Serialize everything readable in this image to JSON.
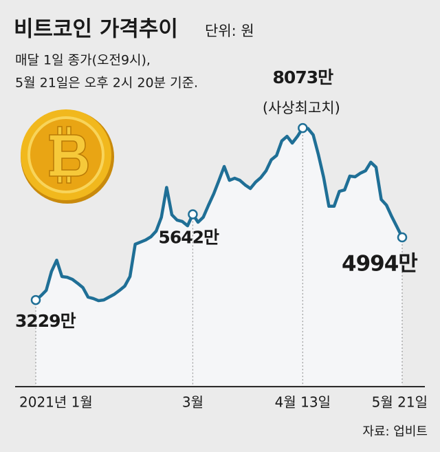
{
  "chart_data": {
    "type": "line",
    "title": "비트코인 가격추이",
    "unit": "단위: 원",
    "subtitle": [
      "매달 1일 종가(오전9시),",
      "5월 21일은 오후 2시 20분 기준."
    ],
    "source": "자료: 업비트",
    "peak_note": "(사상최고치)",
    "color": "#1f6f96",
    "ylim": [
      827,
      8967
    ],
    "categories": [
      "2021년 1월",
      null,
      null,
      null,
      null,
      null,
      null,
      null,
      null,
      null,
      null,
      null,
      null,
      null,
      null,
      null,
      null,
      null,
      null,
      null,
      null,
      null,
      null,
      null,
      null,
      null,
      null,
      null,
      null,
      null,
      "3월",
      null,
      null,
      null,
      null,
      null,
      null,
      null,
      null,
      null,
      null,
      null,
      null,
      null,
      null,
      null,
      null,
      null,
      null,
      null,
      null,
      "4월 13일",
      null,
      null,
      null,
      null,
      null,
      null,
      null,
      null,
      null,
      null,
      null,
      null,
      null,
      null,
      null,
      null,
      null,
      null,
      "5월 21일"
    ],
    "values": [
      3229,
      3350,
      3500,
      4030,
      4350,
      3890,
      3870,
      3810,
      3700,
      3580,
      3310,
      3270,
      3210,
      3230,
      3310,
      3390,
      3500,
      3620,
      3890,
      4800,
      4860,
      4920,
      5010,
      5170,
      5560,
      6400,
      5630,
      5480,
      5440,
      5320,
      5642,
      5420,
      5560,
      5900,
      6220,
      6600,
      6990,
      6600,
      6660,
      6600,
      6470,
      6370,
      6550,
      6680,
      6870,
      7180,
      7300,
      7710,
      7840,
      7650,
      7840,
      8073,
      8060,
      7880,
      7320,
      6680,
      5870,
      5870,
      6290,
      6330,
      6720,
      6700,
      6800,
      6870,
      7110,
      6970,
      6060,
      5900,
      5580,
      5290,
      4994
    ],
    "value_labels": [
      "3229만",
      null,
      null,
      null,
      null,
      null,
      null,
      null,
      null,
      null,
      null,
      null,
      null,
      null,
      null,
      null,
      null,
      null,
      null,
      null,
      null,
      null,
      null,
      null,
      null,
      null,
      null,
      null,
      null,
      null,
      "5642만",
      null,
      null,
      null,
      null,
      null,
      null,
      null,
      null,
      null,
      null,
      null,
      null,
      null,
      null,
      null,
      null,
      null,
      null,
      null,
      null,
      "8073만",
      null,
      null,
      null,
      null,
      null,
      null,
      null,
      null,
      null,
      null,
      null,
      null,
      null,
      null,
      null,
      null,
      null,
      null,
      "4994만"
    ]
  }
}
